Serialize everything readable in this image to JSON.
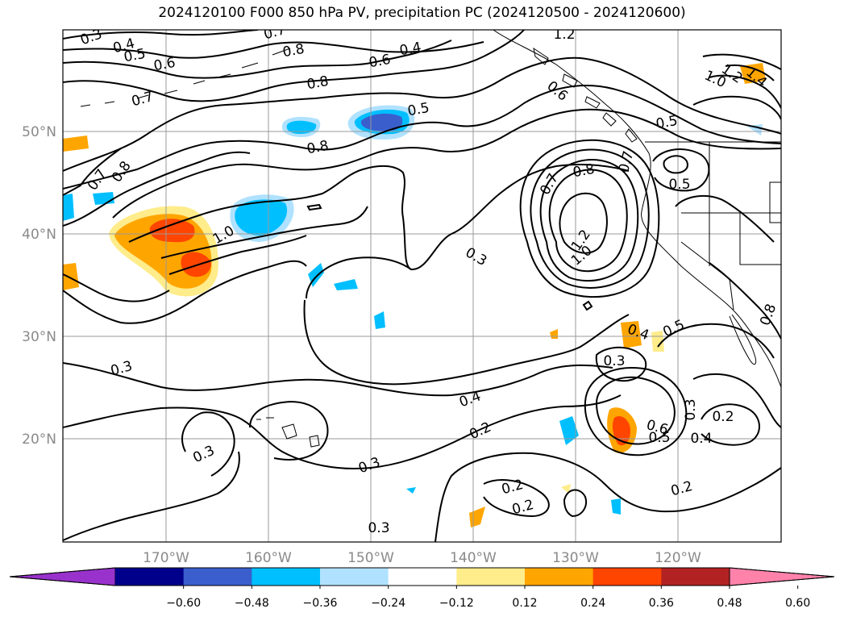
{
  "title": "2024120100 F000 850 hPa PV, precipitation PC (2024120500 - 2024120600)",
  "map": {
    "lat_labels": [
      "50°N",
      "40°N",
      "30°N",
      "20°N"
    ],
    "lon_labels": [
      "170°W",
      "160°W",
      "150°W",
      "140°W",
      "130°W",
      "120°W"
    ]
  },
  "contour_labels": [
    "0.3",
    "0.4",
    "0.5",
    "0.6",
    "0.7",
    "0.8",
    "0.8",
    "0.7",
    "0.8",
    "1.0",
    "0.5",
    "0.6",
    "0.4",
    "1.2",
    "1.0",
    "1.2",
    "1.4",
    "0.7",
    "0.5",
    "0.8",
    "0.7",
    "0.5",
    "0.8",
    "0.7",
    "1.0",
    "1.2",
    "0.6",
    "0.3",
    "0.4",
    "0.3",
    "0.5",
    "0.3",
    "0.4",
    "0.2",
    "0.6",
    "0.5",
    "0.4",
    "0.3",
    "0.2",
    "0.3",
    "0.3",
    "0.2",
    "0.2",
    "0.2",
    "0.3",
    "0.8"
  ],
  "colorbar": {
    "ticks": [
      "−0.60",
      "−0.48",
      "−0.36",
      "−0.24",
      "−0.12",
      "0.12",
      "0.24",
      "0.36",
      "0.48",
      "0.60"
    ],
    "colors": [
      "#9932cc",
      "#00008b",
      "#3a5fcd",
      "#00bfff",
      "#b0e2ff",
      "#ffffff",
      "#ffec8b",
      "#ffa500",
      "#ff4500",
      "#b22222",
      "#ff82ab"
    ]
  }
}
